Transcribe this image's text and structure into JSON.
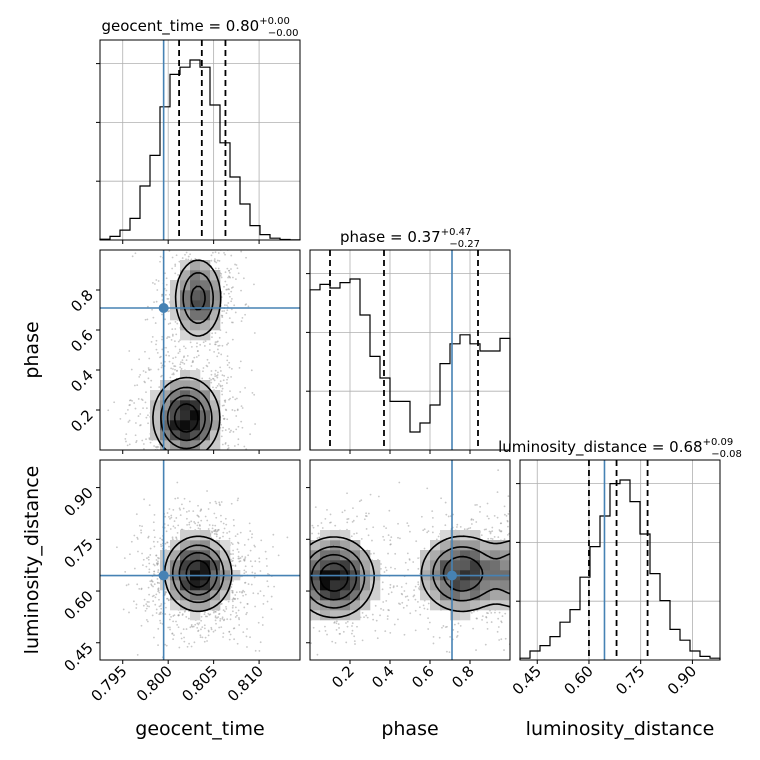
{
  "chart_data": {
    "type": "corner",
    "parameters": [
      {
        "name": "geocent_time",
        "label": "geocent_time",
        "title": "geocent_time = 0.80",
        "median": 0.8,
        "err_plus": "+0.00",
        "err_minus": "−0.00",
        "truth": 0.7995,
        "quantiles": [
          0.8012,
          0.8037,
          0.8063
        ],
        "range": [
          0.7925,
          0.8145
        ],
        "ticks": [
          0.795,
          0.8,
          0.805,
          0.81
        ],
        "tick_labels": [
          "0.795",
          "0.800",
          "0.805",
          "0.810"
        ],
        "hist": {
          "edges": [
            0.7925,
            0.7936,
            0.7947,
            0.7958,
            0.7969,
            0.798,
            0.7991,
            0.8002,
            0.8013,
            0.8024,
            0.8035,
            0.8046,
            0.8057,
            0.8068,
            0.8079,
            0.809,
            0.8101,
            0.8112,
            0.8123,
            0.8134,
            0.8145
          ],
          "counts": [
            0.004,
            0.02,
            0.055,
            0.12,
            0.3,
            0.47,
            0.74,
            0.92,
            0.96,
            1.0,
            0.96,
            0.75,
            0.54,
            0.35,
            0.2,
            0.08,
            0.03,
            0.01,
            0.003,
            0.001
          ]
        }
      },
      {
        "name": "phase",
        "label": "phase",
        "title": "phase = 0.37",
        "median": 0.37,
        "err_plus": "+0.47",
        "err_minus": "−0.27",
        "truth": 0.71,
        "quantiles": [
          0.1,
          0.37,
          0.84
        ],
        "range": [
          0.0,
          1.0
        ],
        "ticks": [
          0.2,
          0.4,
          0.6,
          0.8
        ],
        "tick_labels": [
          "0.2",
          "0.4",
          "0.6",
          "0.8"
        ],
        "hist": {
          "edges": [
            0.0,
            0.05,
            0.1,
            0.15,
            0.2,
            0.25,
            0.3,
            0.35,
            0.4,
            0.45,
            0.5,
            0.55,
            0.6,
            0.65,
            0.7,
            0.75,
            0.8,
            0.85,
            0.9,
            0.95,
            1.0
          ],
          "counts": [
            0.89,
            0.92,
            0.9,
            0.93,
            0.95,
            0.75,
            0.52,
            0.4,
            0.27,
            0.27,
            0.1,
            0.15,
            0.25,
            0.48,
            0.59,
            0.64,
            0.59,
            0.55,
            0.55,
            0.62
          ]
        }
      },
      {
        "name": "luminosity_distance",
        "label": "luminosity_distance",
        "title": "luminosity_distance = 0.68",
        "median": 0.68,
        "err_plus": "+0.09",
        "err_minus": "−0.08",
        "truth": 0.645,
        "quantiles": [
          0.6,
          0.68,
          0.77
        ],
        "range": [
          0.4,
          0.98
        ],
        "ticks": [
          0.45,
          0.6,
          0.75,
          0.9
        ],
        "tick_labels": [
          "0.45",
          "0.60",
          "0.75",
          "0.90"
        ],
        "hist": {
          "edges": [
            0.4,
            0.429,
            0.458,
            0.487,
            0.516,
            0.545,
            0.574,
            0.603,
            0.632,
            0.661,
            0.69,
            0.719,
            0.748,
            0.777,
            0.806,
            0.835,
            0.864,
            0.893,
            0.922,
            0.951,
            0.98
          ],
          "counts": [
            0.01,
            0.05,
            0.08,
            0.13,
            0.21,
            0.28,
            0.46,
            0.63,
            0.8,
            0.98,
            1.0,
            0.88,
            0.7,
            0.48,
            0.33,
            0.17,
            0.11,
            0.05,
            0.02,
            0.01
          ]
        }
      }
    ],
    "pairs": [
      {
        "x": "geocent_time",
        "y": "phase",
        "modes": [
          {
            "cx": 0.8033,
            "cy": 0.76,
            "sx": 0.0017,
            "sy": 0.13,
            "w": 1.0
          },
          {
            "cx": 0.802,
            "cy": 0.16,
            "sx": 0.0022,
            "sy": 0.12,
            "w": 1.4
          }
        ]
      },
      {
        "x": "geocent_time",
        "y": "luminosity_distance",
        "modes": [
          {
            "cx": 0.8033,
            "cy": 0.65,
            "sx": 0.0022,
            "sy": 0.065,
            "w": 1.0
          }
        ]
      },
      {
        "x": "phase",
        "y": "luminosity_distance",
        "modes": [
          {
            "cx": 0.12,
            "cy": 0.64,
            "sx": 0.12,
            "sy": 0.07,
            "w": 1.2
          },
          {
            "cx": 0.76,
            "cy": 0.65,
            "sx": 0.13,
            "sy": 0.07,
            "w": 1.0
          },
          {
            "cx": 1.05,
            "cy": 0.65,
            "sx": 0.08,
            "sy": 0.07,
            "w": 0.7
          }
        ]
      }
    ],
    "truth_color": "#4682b4",
    "contour_levels": [
      0.25,
      0.45,
      0.65,
      0.85
    ],
    "grid": true
  }
}
